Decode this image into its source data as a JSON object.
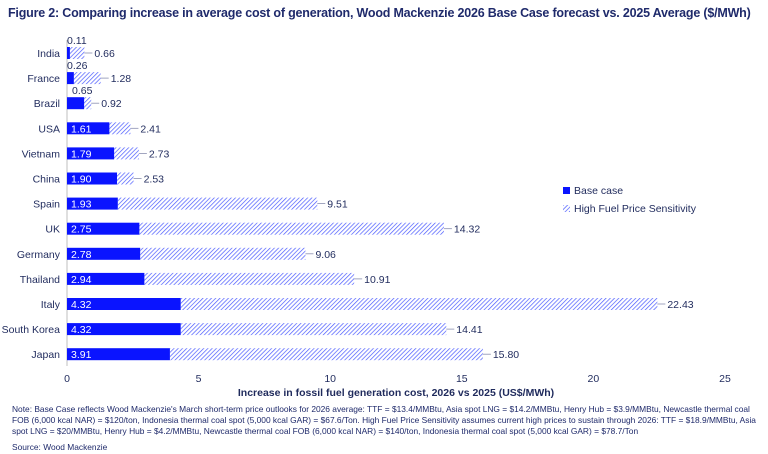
{
  "chart_data": {
    "type": "bar",
    "orientation": "horizontal",
    "title": "Figure 2: Comparing increase in average cost of generation, Wood Mackenzie 2026 Base Case forecast vs. 2025 Average ($/MWh)",
    "xlabel": "Increase in fossil fuel generation cost, 2026 vs 2025 (US$/MWh)",
    "ylabel": "",
    "xlim": [
      0,
      25
    ],
    "xticks": [
      0,
      5,
      10,
      15,
      20,
      25
    ],
    "grid": false,
    "legend_position": "right",
    "categories": [
      "India",
      "France",
      "Brazil",
      "USA",
      "Vietnam",
      "China",
      "Spain",
      "UK",
      "Germany",
      "Thailand",
      "Italy",
      "South Korea",
      "Japan"
    ],
    "series": [
      {
        "name": "Base case",
        "color": "#0a14ff",
        "values": [
          0.11,
          0.26,
          0.65,
          1.61,
          1.79,
          1.9,
          1.93,
          2.75,
          2.78,
          2.94,
          4.32,
          4.32,
          3.91
        ]
      },
      {
        "name": "High Fuel Price Sensitivity",
        "color": "#3b4cff",
        "pattern": "hatched",
        "values": [
          0.66,
          1.28,
          0.92,
          2.41,
          2.73,
          2.53,
          9.51,
          14.32,
          9.06,
          10.91,
          22.43,
          14.41,
          15.8
        ]
      }
    ]
  },
  "note": "Note: Base Case reflects Wood Mackenzie's March short-term price outlooks for 2026 average: TTF = $13.4/MMBtu, Asia spot LNG = $14.2/MMBtu, Henry Hub = $3.9/MMBtu, Newcastle thermal coal FOB (6,000 kcal NAR) = $120/ton, Indonesia thermal coal spot (5,000 kcal GAR) = $67.6/Ton. High Fuel Price Sensitivity assumes current high prices to sustain through  2026: TTF = $18.9/MMBtu, Asia spot LNG = $20/MMBtu, Henry Hub = $4.2/MMBtu, Newcastle thermal coal FOB (6,000 kcal NAR) = $140/ton, Indonesia thermal coal spot (5,000 kcal GAR) = $78.7/Ton",
  "source": "Source: Wood Mackenzie"
}
